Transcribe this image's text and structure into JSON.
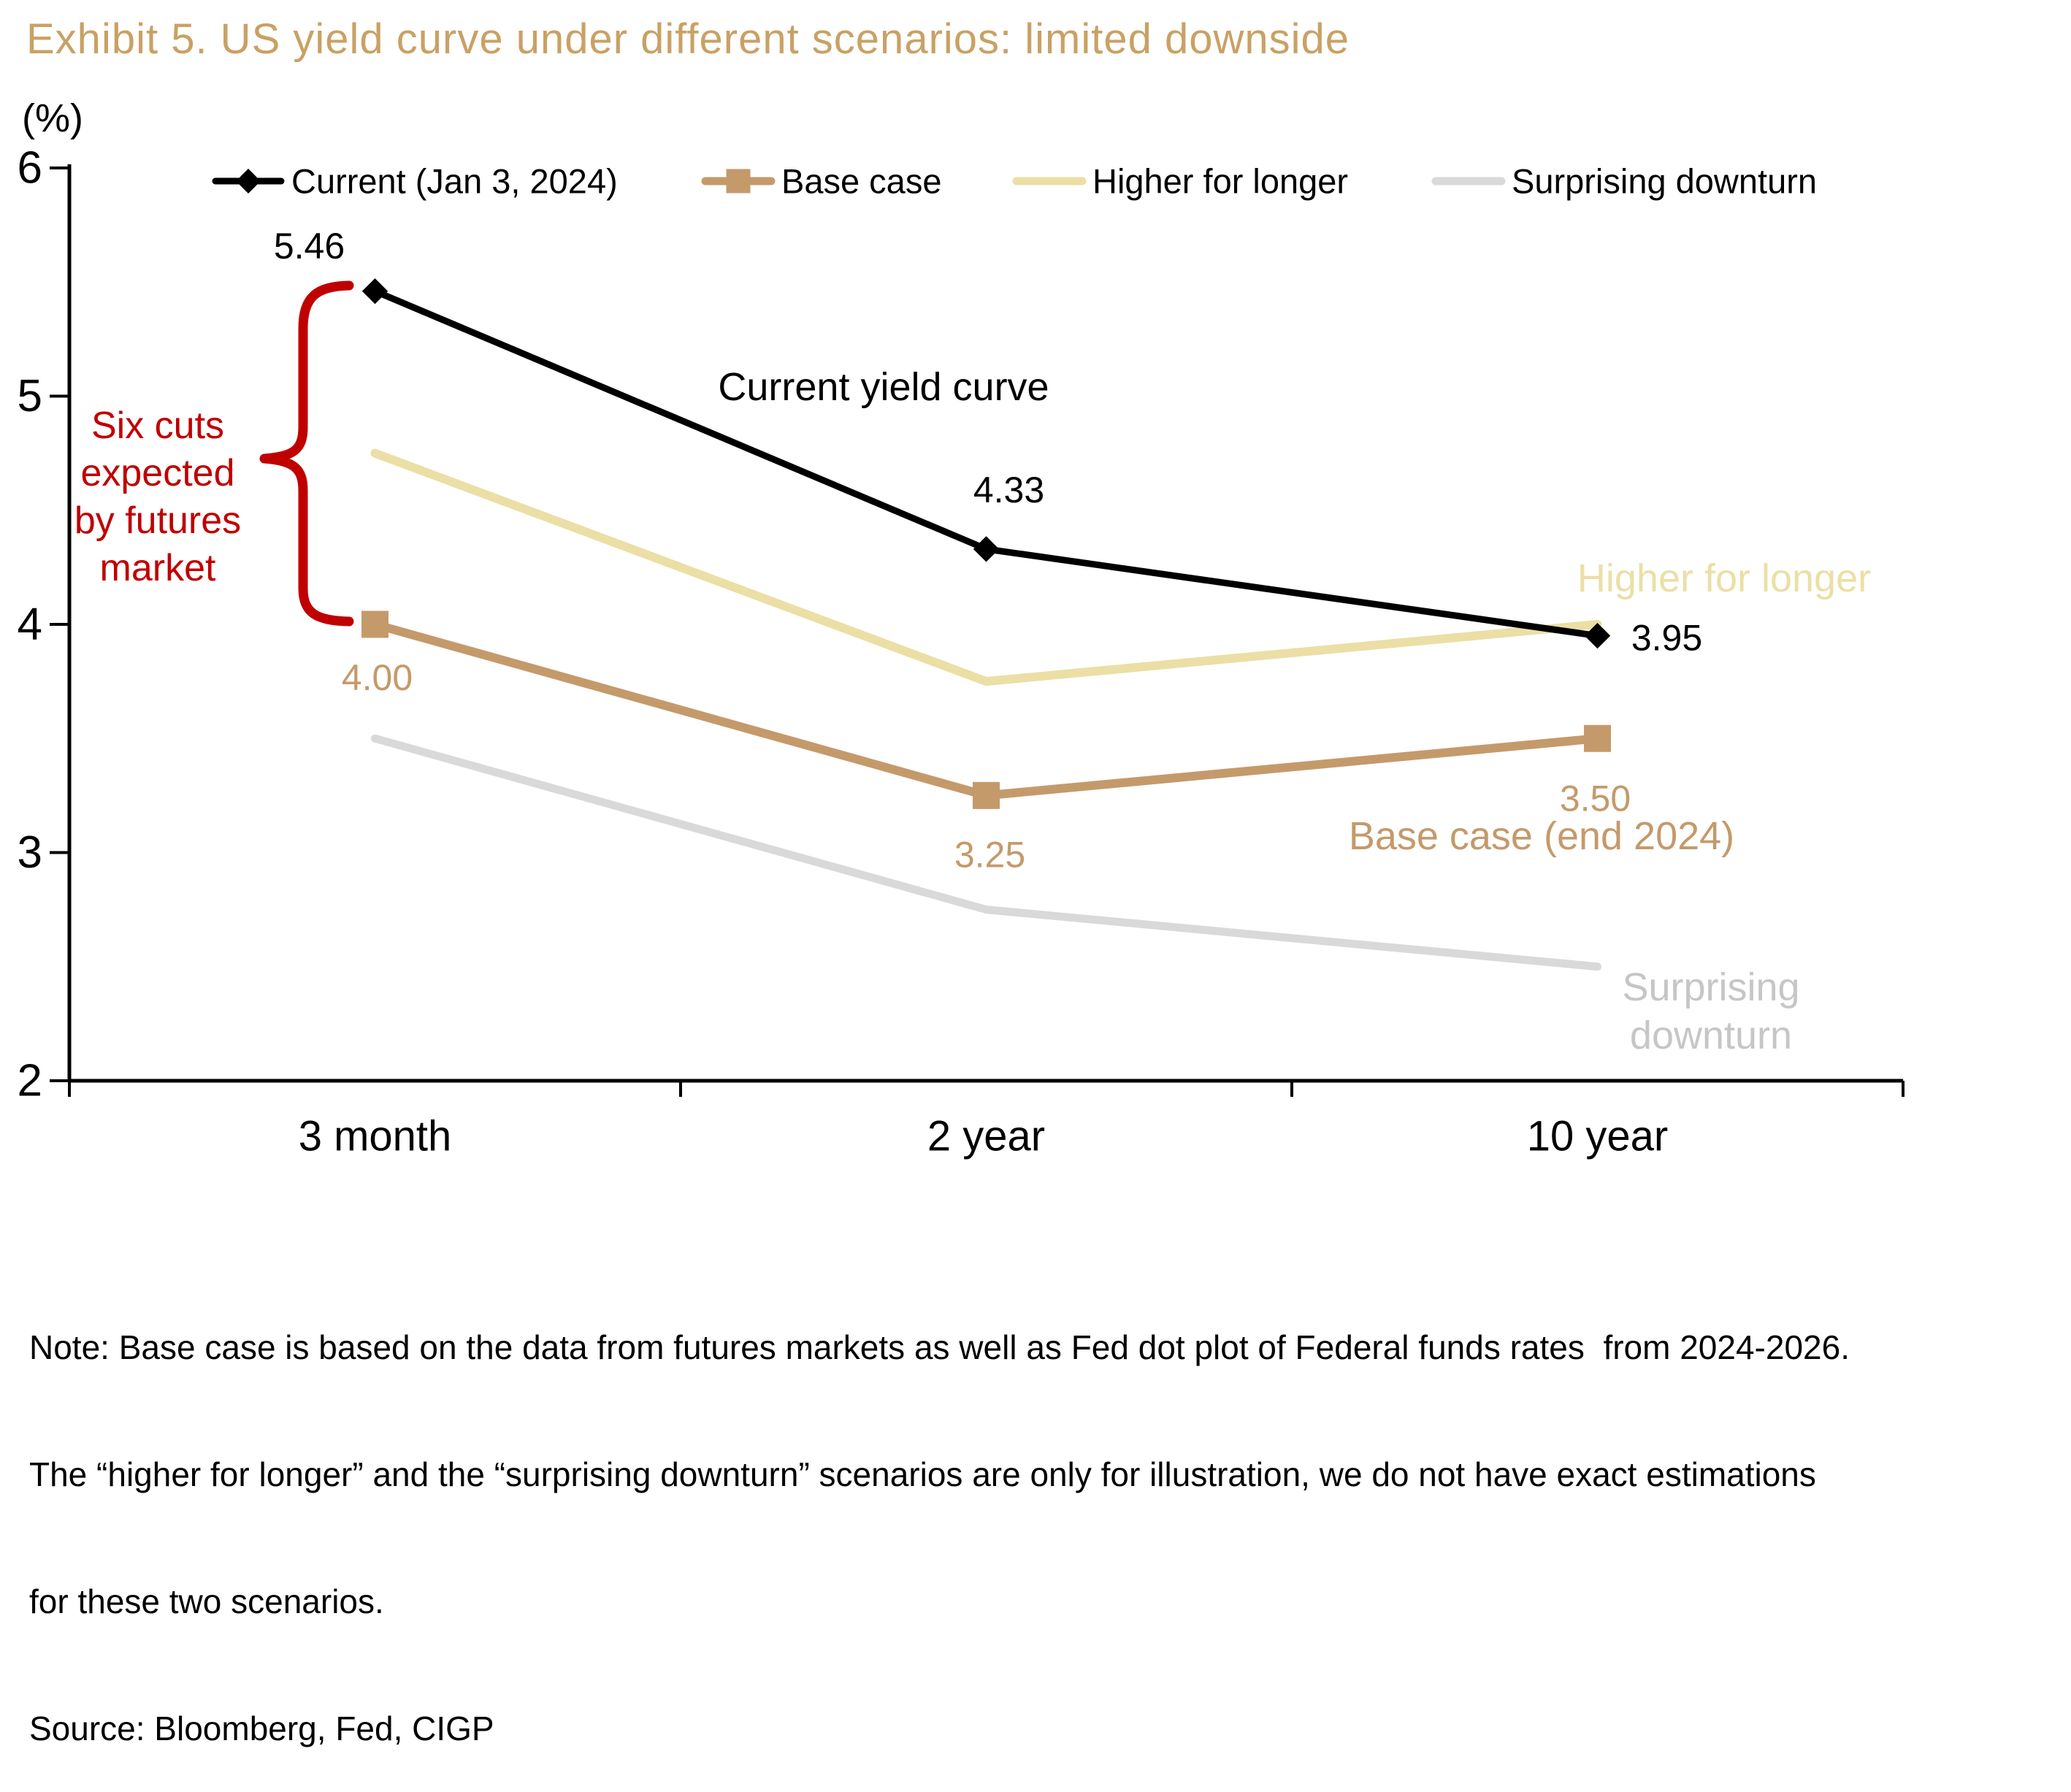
{
  "title": "Exhibit 5. US yield curve under different scenarios: limited downside",
  "y_axis_unit": "(%)",
  "chart_data": {
    "type": "line",
    "categories": [
      "3 month",
      "2 year",
      "10 year"
    ],
    "series": [
      {
        "name": "Current (Jan 3, 2024)",
        "values": [
          5.46,
          4.33,
          3.95
        ],
        "point_labels": [
          "5.46",
          "4.33",
          "3.95"
        ],
        "color_key": "black",
        "marker": "diamond"
      },
      {
        "name": "Base case",
        "values": [
          4.0,
          3.25,
          3.5
        ],
        "point_labels": [
          "4.00",
          "3.25",
          "3.50"
        ],
        "color_key": "tan",
        "marker": "square"
      },
      {
        "name": "Higher for longer",
        "values": [
          4.75,
          3.75,
          4.0
        ],
        "point_labels": [],
        "color_key": "cream",
        "marker": "none"
      },
      {
        "name": "Surprising downturn",
        "values": [
          3.5,
          2.75,
          2.5
        ],
        "point_labels": [],
        "color_key": "gray",
        "marker": "none"
      }
    ],
    "ylim": [
      2,
      6
    ],
    "yticks": [
      6,
      5,
      4,
      3,
      2
    ],
    "grid": false,
    "legend_position": "top"
  },
  "annotations": {
    "current_curve": "Current yield curve",
    "higher_for_longer": "Higher for longer",
    "base_case": "Base case (end 2024)",
    "surprising_line1": "Surprising",
    "surprising_line2": "downturn",
    "six_cuts_lines": [
      "Six cuts",
      "expected",
      "by futures",
      "market"
    ]
  },
  "colors": {
    "gold_title": "#C9A164",
    "black": "#000000",
    "tan": "#C49A6B",
    "cream": "#EBDFA6",
    "gray": "#D9D9D9",
    "gray_text": "#C6C6C6",
    "red": "#C00000"
  },
  "note_lines": [
    "Note: Base case is based on the data from futures markets as well as Fed dot plot of Federal funds rates  from 2024-2026.",
    "The “higher for longer” and the “surprising downturn” scenarios are only for illustration, we do not have exact estimations",
    "for these two scenarios.",
    "Source: Bloomberg, Fed, CIGP"
  ]
}
